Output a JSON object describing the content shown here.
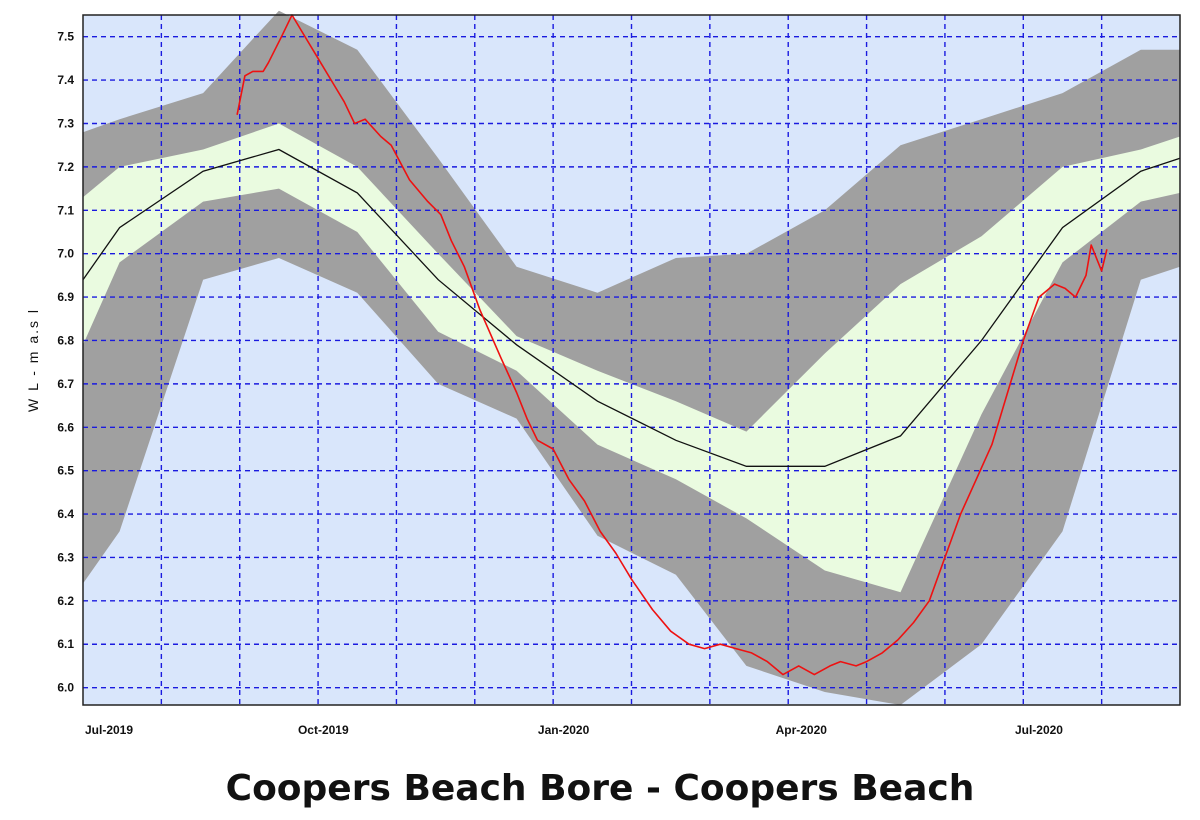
{
  "chart_data": {
    "type": "area",
    "title": "Coopers Beach Bore - Coopers Beach",
    "ylabel": "W L - m a.s l",
    "xlabel": "",
    "ylim": [
      5.96,
      7.55
    ],
    "xlim": [
      0,
      420
    ],
    "grid": true,
    "x_ticks": [
      {
        "x": 0,
        "label": "Jul-2019"
      },
      {
        "x": 92,
        "label": "Oct-2019"
      },
      {
        "x": 184,
        "label": "Jan-2020"
      },
      {
        "x": 275,
        "label": "Apr-2020"
      },
      {
        "x": 366,
        "label": "Jul-2020"
      }
    ],
    "y_ticks": [
      6.0,
      6.1,
      6.2,
      6.3,
      6.4,
      6.5,
      6.6,
      6.7,
      6.8,
      6.9,
      7.0,
      7.1,
      7.2,
      7.3,
      7.4,
      7.5
    ],
    "colors": {
      "plot_bg": "#d9e6fb",
      "grid": "#1a1adf",
      "outer_band": "#a0a0a0",
      "inner_band": "#eafbe0",
      "median": "#111111",
      "observed": "#ee1111"
    },
    "outer_band": {
      "x": [
        0,
        14,
        46,
        75,
        105,
        136,
        166,
        197,
        227,
        254,
        284,
        313,
        344,
        375,
        405,
        420
      ],
      "upper": [
        7.28,
        7.31,
        7.37,
        7.56,
        7.47,
        7.22,
        6.97,
        6.91,
        6.99,
        7.0,
        7.1,
        7.25,
        7.31,
        7.37,
        7.47,
        7.47
      ],
      "lower": [
        6.24,
        6.36,
        6.94,
        6.99,
        6.91,
        6.7,
        6.62,
        6.35,
        6.26,
        6.05,
        5.99,
        5.96,
        6.1,
        6.36,
        6.94,
        6.97
      ]
    },
    "inner_band": {
      "x": [
        0,
        14,
        46,
        75,
        105,
        136,
        166,
        197,
        227,
        254,
        284,
        313,
        344,
        375,
        405,
        420
      ],
      "upper": [
        7.13,
        7.2,
        7.24,
        7.3,
        7.2,
        7.0,
        6.81,
        6.73,
        6.66,
        6.59,
        6.77,
        6.93,
        7.04,
        7.2,
        7.24,
        7.27
      ],
      "lower": [
        6.79,
        6.98,
        7.12,
        7.15,
        7.05,
        6.82,
        6.73,
        6.56,
        6.48,
        6.39,
        6.27,
        6.22,
        6.63,
        6.98,
        7.12,
        7.14
      ]
    },
    "series": [
      {
        "values_x": [
          0,
          14,
          46,
          75,
          105,
          136,
          166,
          197,
          227,
          254,
          284,
          313,
          344,
          375,
          405,
          420
        ],
        "values_y": [
          6.94,
          7.06,
          7.19,
          7.24,
          7.14,
          6.94,
          6.79,
          6.66,
          6.57,
          6.51,
          6.51,
          6.58,
          6.8,
          7.06,
          7.19,
          7.22
        ]
      },
      {
        "values_x": [
          59,
          62,
          65,
          69,
          71,
          76,
          80,
          84,
          90,
          96,
          100,
          104,
          108,
          114,
          118,
          125,
          132,
          137,
          141,
          146,
          152,
          160,
          166,
          170,
          174,
          180,
          186,
          192,
          198,
          204,
          210,
          218,
          225,
          232,
          238,
          244,
          250,
          256,
          262,
          268,
          274,
          280,
          286,
          290,
          296,
          300,
          306,
          312,
          318,
          324,
          330,
          336,
          342,
          348,
          354,
          360,
          366,
          372,
          376,
          380,
          384,
          386,
          390,
          392
        ],
        "values_y": [
          7.32,
          7.41,
          7.42,
          7.42,
          7.44,
          7.5,
          7.55,
          7.51,
          7.45,
          7.39,
          7.35,
          7.3,
          7.31,
          7.27,
          7.25,
          7.17,
          7.12,
          7.09,
          7.03,
          6.97,
          6.87,
          6.76,
          6.68,
          6.62,
          6.57,
          6.55,
          6.48,
          6.43,
          6.36,
          6.31,
          6.25,
          6.18,
          6.13,
          6.1,
          6.09,
          6.1,
          6.09,
          6.08,
          6.06,
          6.03,
          6.05,
          6.03,
          6.05,
          6.06,
          6.05,
          6.06,
          6.08,
          6.11,
          6.15,
          6.2,
          6.3,
          6.4,
          6.48,
          6.56,
          6.68,
          6.8,
          6.9,
          6.93,
          6.92,
          6.9,
          6.95,
          7.02,
          6.96,
          7.01
        ]
      }
    ]
  }
}
